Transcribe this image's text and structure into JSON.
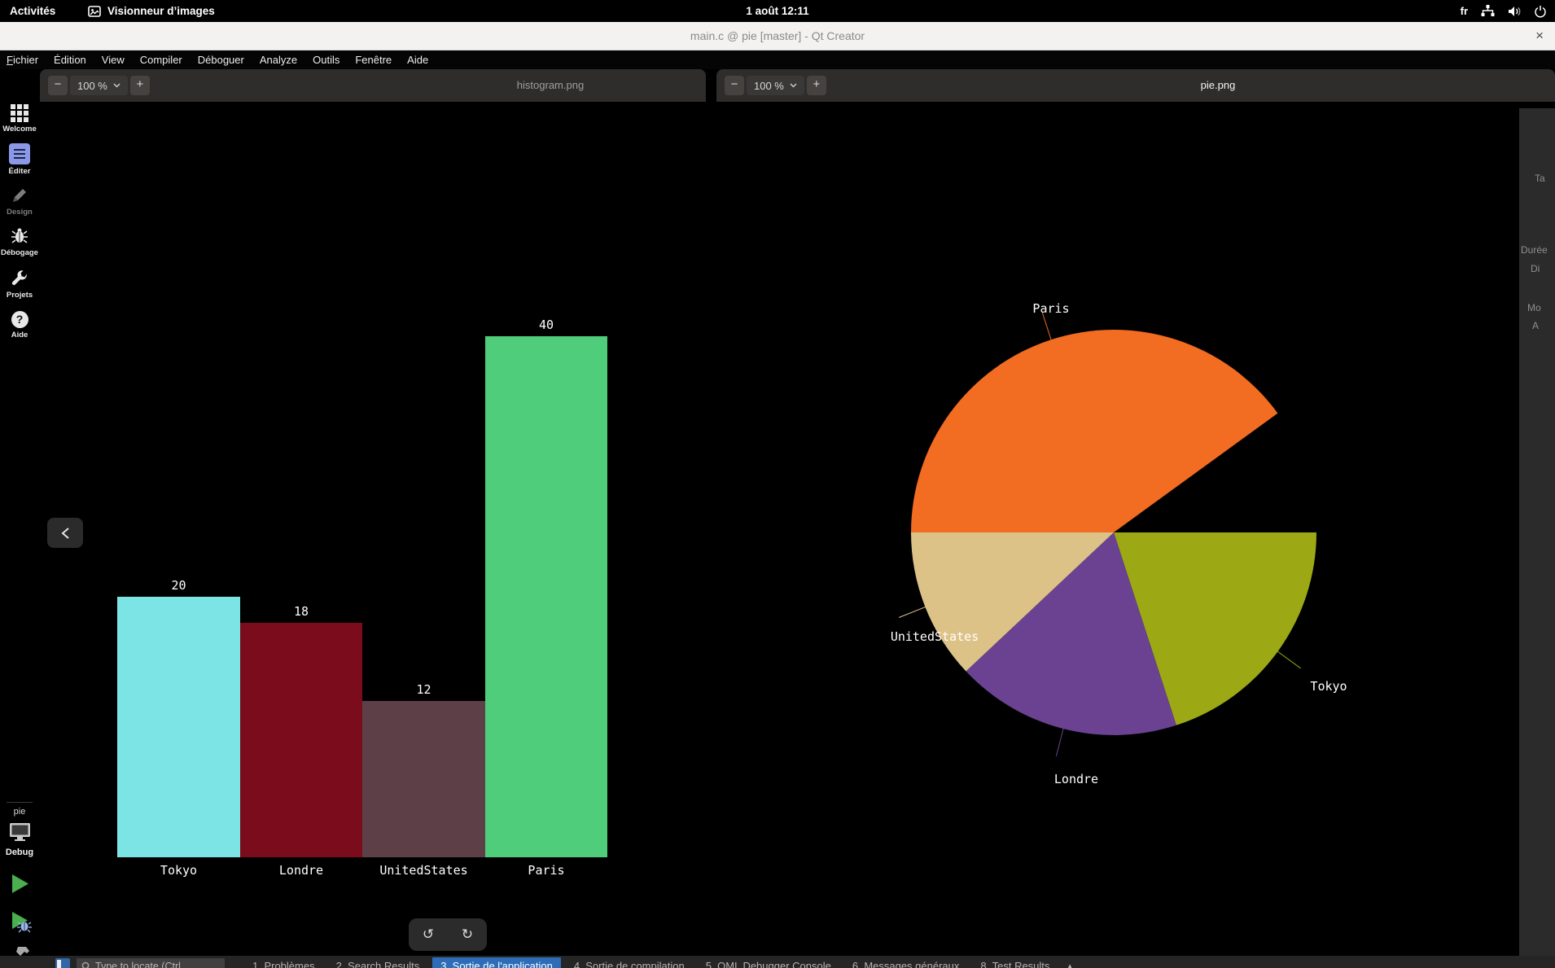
{
  "top_bar": {
    "activities_label": "Activités",
    "app_name": "Visionneur d’images",
    "clock": "1 août 12:11",
    "keyboard_indicator": "fr"
  },
  "title_bar": {
    "title": "main.c @ pie [master] - Qt Creator",
    "close_glyph": "×"
  },
  "menu_bar": {
    "items": [
      "Fichier",
      "Édition",
      "View",
      "Compiler",
      "Déboguer",
      "Analyze",
      "Outils",
      "Fenêtre",
      "Aide"
    ]
  },
  "viewers": {
    "left": {
      "zoom_out_glyph": "−",
      "zoom_level": "100 %",
      "zoom_in_glyph": "+",
      "filename": "histogram.png"
    },
    "right": {
      "zoom_out_glyph": "−",
      "zoom_level": "100 %",
      "zoom_in_glyph": "+",
      "filename": "pie.png"
    }
  },
  "mode_sidebar": {
    "items": [
      {
        "id": "welcome",
        "label": "Welcome",
        "active": false,
        "dimmed": false
      },
      {
        "id": "edit",
        "label": "Éditer",
        "active": true,
        "dimmed": false
      },
      {
        "id": "design",
        "label": "Design",
        "active": false,
        "dimmed": true
      },
      {
        "id": "debug",
        "label": "Débogage",
        "active": false,
        "dimmed": false
      },
      {
        "id": "projects",
        "label": "Projets",
        "active": false,
        "dimmed": false
      },
      {
        "id": "help",
        "label": "Aide",
        "active": false,
        "dimmed": false
      }
    ],
    "help_glyph": "?",
    "project_name": "pie",
    "build_config": "Debug"
  },
  "floating": {
    "back_glyph": "‹",
    "undo_glyph": "↺",
    "redo_glyph": "↻"
  },
  "right_panel": {
    "labels": [
      "Ta",
      "Durée",
      "Di",
      "Mo",
      "A"
    ]
  },
  "bottom_bar": {
    "locator_placeholder": "Type to locate (Ctrl",
    "panes": [
      "1. Problèmes",
      "2. Search Results",
      "3. Sortie de l'application",
      "4. Sortie de compilation",
      "5. QML Debugger Console",
      "6. Messages généraux",
      "8. Test Results"
    ],
    "selected_pane_index": 2,
    "collapse_glyph": "▴"
  },
  "chart_data": [
    {
      "type": "bar",
      "image_filename": "histogram.png",
      "title": "",
      "categories": [
        "Tokyo",
        "Londre",
        "UnitedStates",
        "Paris"
      ],
      "values": [
        20,
        18,
        12,
        40
      ],
      "value_labels": [
        "20",
        "18",
        "12",
        "40"
      ],
      "bar_colors": [
        "#7ce4e4",
        "#7a0c1b",
        "#5d4047",
        "#4fcd7a"
      ],
      "background": "#000000",
      "text_color": "#ffffff",
      "grid": false,
      "axes_visible": false,
      "ylim": [
        0,
        42
      ]
    },
    {
      "type": "pie",
      "image_filename": "pie.png",
      "categories": [
        "Tokyo",
        "Londre",
        "UnitedStates",
        "Paris"
      ],
      "values": [
        20,
        18,
        12,
        40
      ],
      "colors": [
        "#9ca915",
        "#6a4291",
        "#ddc288",
        "#f26c21"
      ],
      "start_angle_deg": 0,
      "direction": "clockwise",
      "degrees_per_unit": 3.6,
      "gap_degrees": 36,
      "label_color": "#ffffff",
      "leader_lines": true,
      "background": "#000000"
    }
  ]
}
